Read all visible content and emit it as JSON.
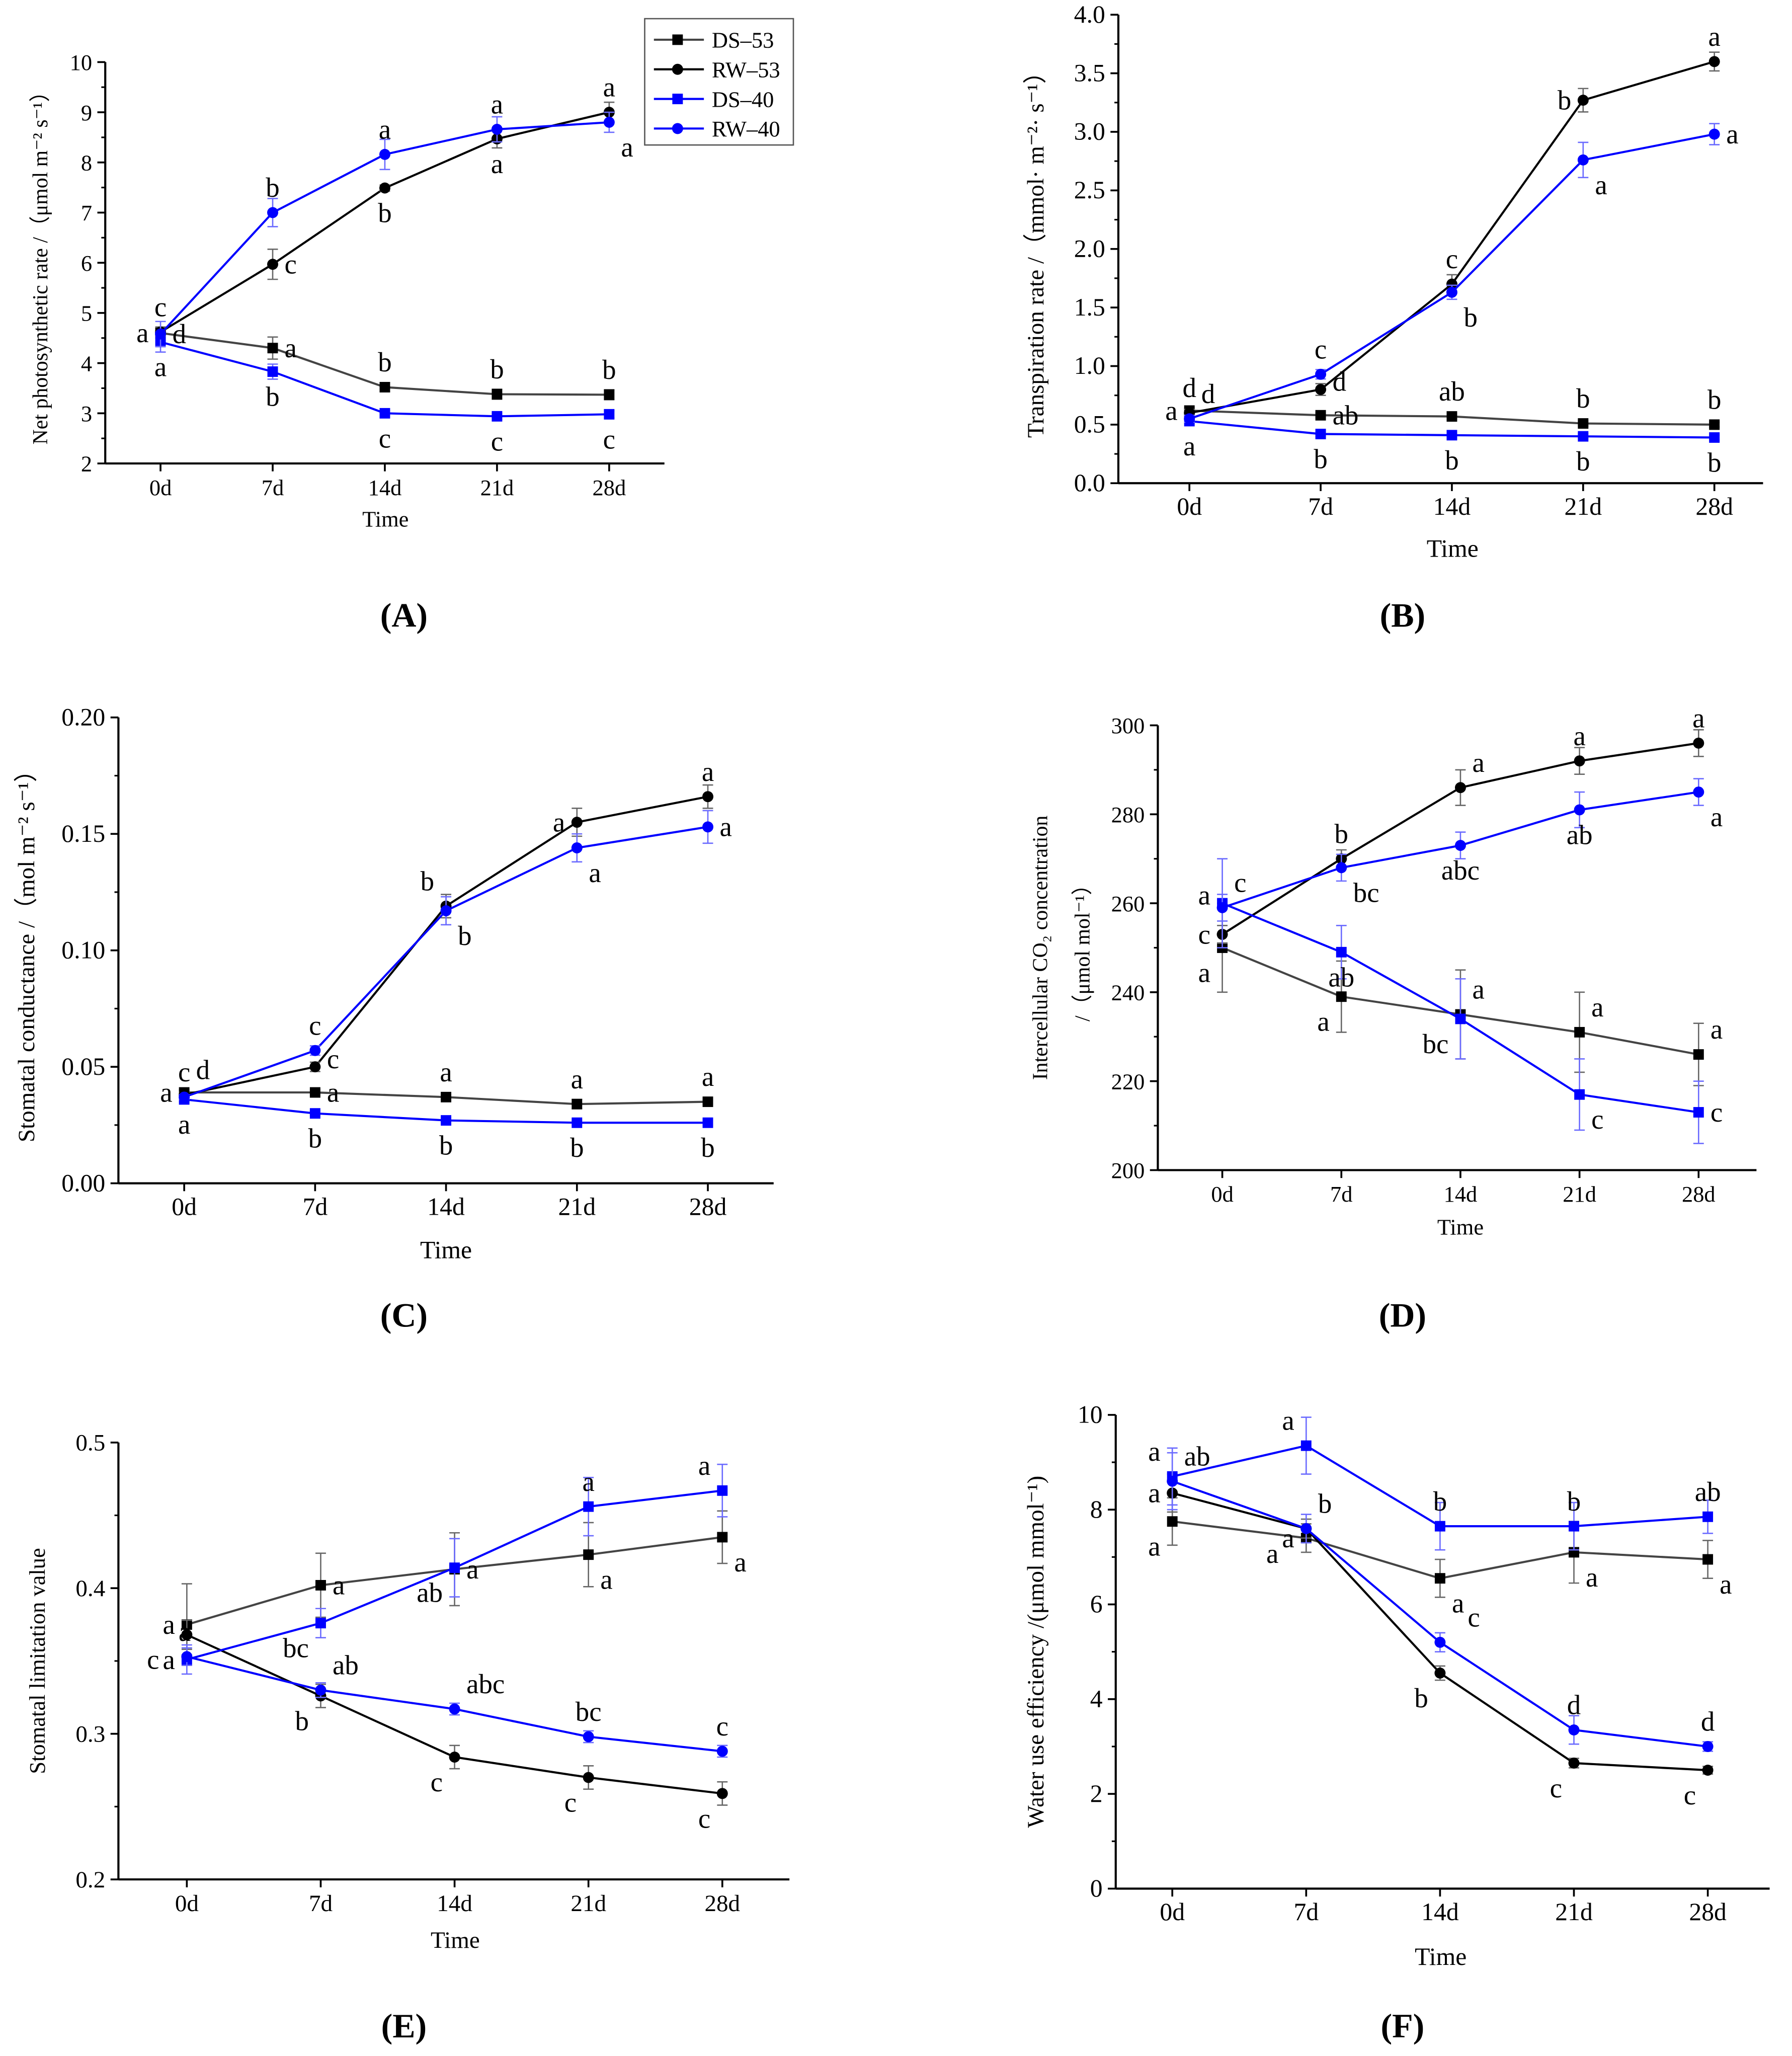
{
  "legend": [
    {
      "name": "DS–53",
      "color": "#000000",
      "line": "#444444",
      "marker": "square"
    },
    {
      "name": "RW–53",
      "color": "#000000",
      "line": "#000000",
      "marker": "circle"
    },
    {
      "name": "DS–40",
      "color": "#0000ff",
      "line": "#0000ff",
      "marker": "square"
    },
    {
      "name": "RW–40",
      "color": "#0000ff",
      "line": "#0000ff",
      "marker": "circle"
    }
  ],
  "chart_data": [
    {
      "panel": "(A)",
      "type": "line",
      "xlabel": "Time",
      "ylabel": [
        "Net photosynthetic rate /（μmol m⁻² s⁻¹）"
      ],
      "categories": [
        "0d",
        "7d",
        "14d",
        "21d",
        "28d"
      ],
      "ylim": [
        2,
        10
      ],
      "yticks": [
        2,
        3,
        4,
        5,
        6,
        7,
        8,
        9,
        10
      ],
      "ydec": 0,
      "legend": "top-right",
      "series": [
        {
          "name": "DS–53",
          "values": [
            4.6,
            4.3,
            3.52,
            3.38,
            3.37
          ],
          "err": [
            0.1,
            0.22,
            0.09,
            0.1,
            0.1
          ],
          "letters": [
            "a",
            "a",
            "b",
            "b",
            "b"
          ],
          "pos": [
            "left",
            "right",
            "above",
            "above",
            "above"
          ]
        },
        {
          "name": "RW–53",
          "values": [
            4.62,
            5.97,
            7.49,
            8.47,
            9.0
          ],
          "err": [
            0.1,
            0.3,
            0.06,
            0.18,
            0.2
          ],
          "letters": [
            "c",
            "c",
            "b",
            "a",
            "a"
          ],
          "pos": [
            "above",
            "right",
            "below",
            "below",
            "above"
          ]
        },
        {
          "name": "DS–40",
          "values": [
            4.42,
            3.83,
            3.0,
            2.94,
            2.98
          ],
          "err": [
            0.2,
            0.15,
            0.05,
            0.06,
            0.07
          ],
          "letters": [
            "a",
            "b",
            "c",
            "c",
            "c"
          ],
          "pos": [
            "below",
            "below",
            "below",
            "below",
            "below"
          ]
        },
        {
          "name": "RW–40",
          "values": [
            4.58,
            7.0,
            8.16,
            8.66,
            8.8
          ],
          "err": [
            0.25,
            0.28,
            0.3,
            0.25,
            0.2
          ],
          "letters": [
            "d",
            "b",
            "a",
            "a",
            "a"
          ],
          "pos": [
            "right",
            "above",
            "above",
            "above",
            "belowright"
          ]
        }
      ]
    },
    {
      "panel": "(B)",
      "type": "line",
      "xlabel": "Time",
      "ylabel": [
        "Transpiration rate /（mmol· m⁻²· s⁻¹）"
      ],
      "categories": [
        "0d",
        "7d",
        "14d",
        "21d",
        "28d"
      ],
      "ylim": [
        0,
        4
      ],
      "yticks": [
        0,
        0.5,
        1,
        1.5,
        2,
        2.5,
        3,
        3.5,
        4
      ],
      "ydec": 1,
      "series": [
        {
          "name": "DS–53",
          "values": [
            0.62,
            0.58,
            0.57,
            0.51,
            0.5
          ],
          "err": [
            0.02,
            0.02,
            0.02,
            0.02,
            0.02
          ],
          "letters": [
            "a",
            "ab",
            "ab",
            "b",
            "b"
          ],
          "pos": [
            "left",
            "right",
            "above",
            "above",
            "above"
          ]
        },
        {
          "name": "RW–53",
          "values": [
            0.6,
            0.8,
            1.7,
            3.27,
            3.6
          ],
          "err": [
            0.03,
            0.05,
            0.08,
            0.1,
            0.08
          ],
          "letters": [
            "d",
            "d",
            "c",
            "b",
            "a"
          ],
          "pos": [
            "above",
            "right",
            "above",
            "left",
            "above"
          ]
        },
        {
          "name": "DS–40",
          "values": [
            0.53,
            0.42,
            0.41,
            0.4,
            0.39
          ],
          "err": [
            0.02,
            0.02,
            0.02,
            0.02,
            0.02
          ],
          "letters": [
            "a",
            "b",
            "b",
            "b",
            "b"
          ],
          "pos": [
            "below",
            "below",
            "below",
            "below",
            "below"
          ]
        },
        {
          "name": "RW–40",
          "values": [
            0.55,
            0.93,
            1.63,
            2.76,
            2.98
          ],
          "err": [
            0.03,
            0.04,
            0.06,
            0.15,
            0.09
          ],
          "letters": [
            "d",
            "c",
            "b",
            "a",
            "a"
          ],
          "pos": [
            "aboveright",
            "above",
            "belowright",
            "belowright",
            "right"
          ]
        }
      ]
    },
    {
      "panel": "(C)",
      "type": "line",
      "xlabel": "Time",
      "ylabel": [
        "Stomatal conductance /（mol  m⁻² s⁻¹）"
      ],
      "categories": [
        "0d",
        "7d",
        "14d",
        "21d",
        "28d"
      ],
      "ylim": [
        0,
        0.2
      ],
      "yticks": [
        0,
        0.05,
        0.1,
        0.15,
        0.2
      ],
      "ydec": 2,
      "series": [
        {
          "name": "DS–53",
          "values": [
            0.039,
            0.039,
            0.037,
            0.034,
            0.035
          ],
          "err": [
            0.001,
            0.001,
            0.001,
            0.002,
            0.001
          ],
          "letters": [
            "a",
            "a",
            "a",
            "a",
            "a"
          ],
          "pos": [
            "left",
            "right",
            "above",
            "above",
            "above"
          ]
        },
        {
          "name": "RW–53",
          "values": [
            0.038,
            0.05,
            0.119,
            0.155,
            0.166
          ],
          "err": [
            0.001,
            0.002,
            0.005,
            0.006,
            0.005
          ],
          "letters": [
            "d",
            "c",
            "b",
            "a",
            "a"
          ],
          "pos": [
            "aboveright",
            "right",
            "aboveleft",
            "left",
            "above"
          ]
        },
        {
          "name": "DS–40",
          "values": [
            0.036,
            0.03,
            0.027,
            0.026,
            0.026
          ],
          "err": [
            0.001,
            0.001,
            0.001,
            0.001,
            0.001
          ],
          "letters": [
            "a",
            "b",
            "b",
            "b",
            "b"
          ],
          "pos": [
            "below",
            "below",
            "below",
            "below",
            "below"
          ]
        },
        {
          "name": "RW–40",
          "values": [
            0.037,
            0.057,
            0.117,
            0.144,
            0.153
          ],
          "err": [
            0.001,
            0.002,
            0.006,
            0.006,
            0.007
          ],
          "letters": [
            "c",
            "c",
            "b",
            "a",
            "a"
          ],
          "pos": [
            "above",
            "above",
            "belowright",
            "belowright",
            "right"
          ]
        }
      ]
    },
    {
      "panel": "(D)",
      "type": "line",
      "xlabel": "Time",
      "ylabel": [
        "Intercellular CO₂ concentration",
        "/（μmol mol⁻¹）"
      ],
      "categories": [
        "0d",
        "7d",
        "14d",
        "21d",
        "28d"
      ],
      "ylim": [
        200,
        300
      ],
      "yticks": [
        200,
        220,
        240,
        260,
        280,
        300
      ],
      "ydec": 0,
      "series": [
        {
          "name": "DS–53",
          "values": [
            250,
            239,
            235,
            231,
            226
          ],
          "err": [
            10,
            8,
            10,
            9,
            7
          ],
          "letters": [
            "a",
            "a",
            "a",
            "a",
            "a"
          ],
          "pos": [
            "belowleft",
            "belowleft",
            "aboveright",
            "aboveright",
            "aboveright"
          ]
        },
        {
          "name": "RW–53",
          "values": [
            253,
            270,
            286,
            292,
            296
          ],
          "err": [
            2,
            2,
            4,
            3,
            3
          ],
          "letters": [
            "c",
            "b",
            "a",
            "a",
            "a"
          ],
          "pos": [
            "left",
            "above",
            "aboveright",
            "above",
            "above"
          ]
        },
        {
          "name": "DS–40",
          "values": [
            260,
            249,
            234,
            217,
            213
          ],
          "err": [
            10,
            6,
            9,
            8,
            7
          ],
          "letters": [
            "a",
            "ab",
            "bc",
            "c",
            "c"
          ],
          "pos": [
            "left",
            "below",
            "belowleft",
            "belowright",
            "right"
          ]
        },
        {
          "name": "RW–40",
          "values": [
            259,
            268,
            273,
            281,
            285
          ],
          "err": [
            3,
            3,
            3,
            4,
            3
          ],
          "letters": [
            "c",
            "bc",
            "abc",
            "ab",
            "a"
          ],
          "pos": [
            "aboveright",
            "belowright",
            "below",
            "below",
            "belowright"
          ]
        }
      ]
    },
    {
      "panel": "(E)",
      "type": "line",
      "xlabel": "Time",
      "ylabel": [
        "Stomatal limitation value"
      ],
      "categories": [
        "0d",
        "7d",
        "14d",
        "21d",
        "28d"
      ],
      "ylim": [
        0.2,
        0.5
      ],
      "yticks": [
        0.2,
        0.3,
        0.4,
        0.5
      ],
      "ydec": 1,
      "series": [
        {
          "name": "DS–53",
          "values": [
            0.375,
            0.402,
            0.413,
            0.423,
            0.435
          ],
          "err": [
            0.028,
            0.022,
            0.025,
            0.022,
            0.018
          ],
          "letters": [
            "a",
            "a",
            "a",
            "a",
            "a"
          ],
          "pos": [
            "left",
            "right",
            "right",
            "belowright",
            "belowright"
          ]
        },
        {
          "name": "RW–53",
          "values": [
            0.368,
            0.326,
            0.284,
            0.27,
            0.259
          ],
          "err": [
            0.01,
            0.008,
            0.008,
            0.008,
            0.008
          ],
          "letters": [
            "a",
            "b",
            "c",
            "c",
            "c"
          ],
          "pos": [
            "belowleft",
            "belowleft",
            "belowleft",
            "belowleft",
            "belowleft"
          ]
        },
        {
          "name": "DS–40",
          "values": [
            0.351,
            0.376,
            0.414,
            0.456,
            0.467
          ],
          "err": [
            0.01,
            0.01,
            0.02,
            0.02,
            0.018
          ],
          "letters": [
            "c",
            "bc",
            "ab",
            "a",
            "a"
          ],
          "pos": [
            "left",
            "belowleft",
            "belowleft",
            "above",
            "aboveleft"
          ]
        },
        {
          "name": "RW–40",
          "values": [
            0.353,
            0.33,
            0.317,
            0.298,
            0.288
          ],
          "err": [
            0.006,
            0.005,
            0.004,
            0.004,
            0.004
          ],
          "letters": [
            "a",
            "ab",
            "abc",
            "bc",
            "c"
          ],
          "pos": [
            "aboveleft",
            "aboveright",
            "aboveright",
            "above",
            "above"
          ]
        }
      ]
    },
    {
      "panel": "(F)",
      "type": "line",
      "xlabel": "Time",
      "ylabel": [
        "Water use efficiency /(μmol mmol⁻¹)"
      ],
      "categories": [
        "0d",
        "7d",
        "14d",
        "21d",
        "28d"
      ],
      "ylim": [
        0,
        10
      ],
      "yticks": [
        0,
        2,
        4,
        6,
        8,
        10
      ],
      "ydec": 0,
      "series": [
        {
          "name": "DS–53",
          "values": [
            7.75,
            7.4,
            6.55,
            7.1,
            6.95
          ],
          "err": [
            0.5,
            0.3,
            0.4,
            0.65,
            0.4
          ],
          "letters": [
            "a",
            "a",
            "a",
            "a",
            "a"
          ],
          "pos": [
            "belowleft",
            "left",
            "belowright",
            "belowright",
            "belowright"
          ]
        },
        {
          "name": "RW–53",
          "values": [
            8.35,
            7.6,
            4.55,
            2.65,
            2.5
          ],
          "err": [
            0.4,
            0.2,
            0.15,
            0.1,
            0.08
          ],
          "letters": [
            "a",
            "a",
            "b",
            "c",
            "c"
          ],
          "pos": [
            "left",
            "belowleft",
            "belowleft",
            "belowleft",
            "belowleft"
          ]
        },
        {
          "name": "DS–40",
          "values": [
            8.7,
            9.35,
            7.65,
            7.65,
            7.85
          ],
          "err": [
            0.6,
            0.6,
            0.5,
            0.5,
            0.35
          ],
          "letters": [
            "a",
            "a",
            "b",
            "b",
            "ab"
          ],
          "pos": [
            "aboveleft",
            "aboveleft",
            "above",
            "above",
            "above"
          ]
        },
        {
          "name": "RW–40",
          "values": [
            8.6,
            7.6,
            5.2,
            3.35,
            3.0
          ],
          "err": [
            0.6,
            0.3,
            0.2,
            0.3,
            0.1
          ],
          "letters": [
            "ab",
            "b",
            "c",
            "d",
            "d"
          ],
          "pos": [
            "aboveright",
            "aboveright",
            "aboveright",
            "above",
            "above"
          ]
        }
      ]
    }
  ]
}
